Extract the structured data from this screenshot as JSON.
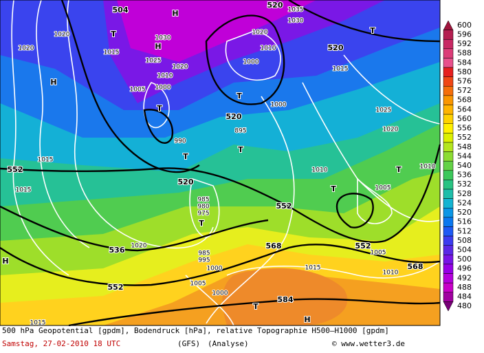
{
  "map": {
    "labels": [
      "504",
      "H",
      "T",
      "1030",
      "H",
      "1020",
      "1020",
      "1015",
      "H",
      "1025",
      "1020",
      "1010",
      "1005",
      "1000",
      "T",
      "520",
      "1035",
      "1030",
      "1020",
      "1010",
      "1000",
      "T",
      "520",
      "895",
      "T",
      "1000",
      "520",
      "1015",
      "T",
      "1025",
      "1020",
      "990",
      "T",
      "520",
      "552",
      "1015",
      "1015",
      "1010",
      "T",
      "T",
      "1005",
      "1010",
      "985",
      "980",
      "975",
      "T",
      "552",
      "552",
      "536",
      "1020",
      "568",
      "985",
      "995",
      "1000",
      "1015",
      "1010",
      "568",
      "552",
      "1005",
      "1000",
      "584",
      "T",
      "H",
      "1015",
      "H",
      "1005"
    ]
  },
  "legend": {
    "values": [
      600,
      596,
      592,
      588,
      584,
      580,
      576,
      572,
      568,
      564,
      560,
      556,
      552,
      548,
      544,
      540,
      536,
      532,
      528,
      524,
      520,
      516,
      512,
      508,
      504,
      500,
      496,
      492,
      488,
      484,
      480
    ],
    "colors": [
      "#a0143c",
      "#b41e50",
      "#c82864",
      "#dc3c78",
      "#e8508c",
      "#e61e1e",
      "#f04614",
      "#f56e0a",
      "#fa9600",
      "#ffb400",
      "#ffd200",
      "#fff000",
      "#dcf000",
      "#b4e61e",
      "#8cdc32",
      "#64d246",
      "#3cc85a",
      "#28c382",
      "#1ebeaa",
      "#14b4d2",
      "#0a96e6",
      "#0a78f0",
      "#1e5af5",
      "#3c3cf0",
      "#5a28e6",
      "#7814e6",
      "#9600e6",
      "#b400dc",
      "#c800c8",
      "#a000a0",
      "#780078"
    ]
  },
  "footer": {
    "line1": "500 hPa Geopotential [gpdm], Bodendruck [hPa], relative Topographie H500—H1000 [gpdm]",
    "date": "Samstag, 27-02-2010  18 UTC",
    "model": "(GFS)",
    "run": "(Analyse)",
    "credit": "© www.wetter3.de"
  }
}
